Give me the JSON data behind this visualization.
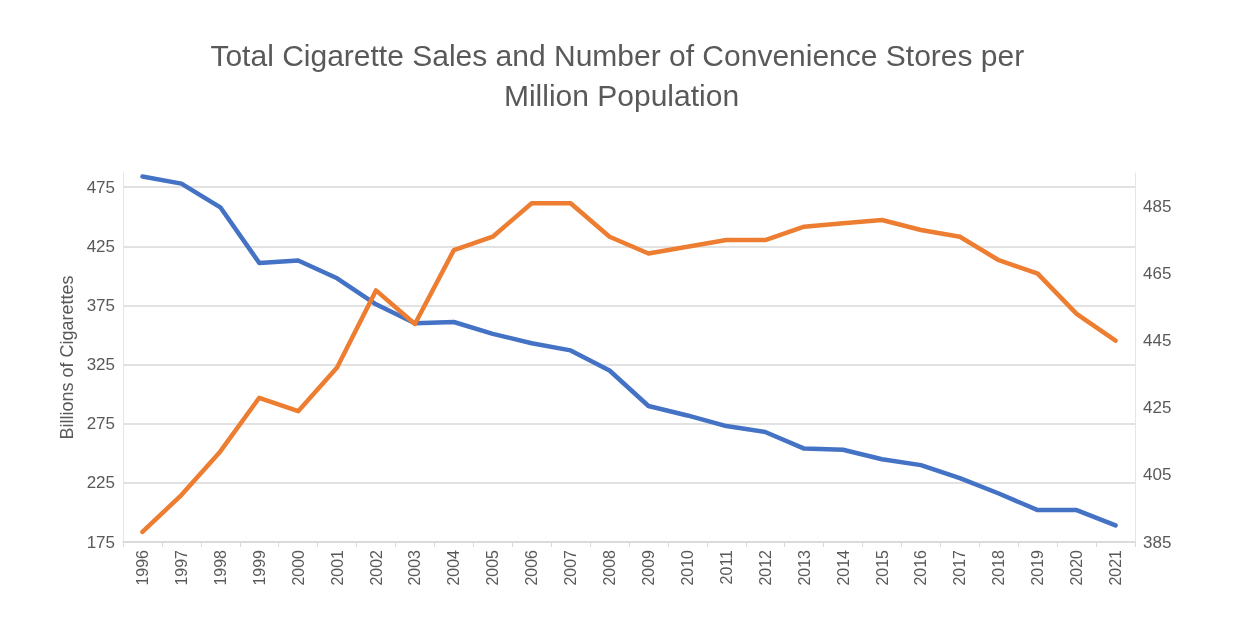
{
  "chart_data": {
    "type": "line",
    "title": "Total Cigarette Sales and Number of Convenience Stores per Million Population",
    "ylabel": "Billions of Cigarettes",
    "categories": [
      "1996",
      "1997",
      "1998",
      "1999",
      "2000",
      "2001",
      "2002",
      "2003",
      "2004",
      "2005",
      "2006",
      "2007",
      "2008",
      "2009",
      "2010",
      "2011",
      "2012",
      "2013",
      "2014",
      "2015",
      "2016",
      "2017",
      "2018",
      "2019",
      "2020",
      "2021"
    ],
    "series": [
      {
        "color": "#4472c4",
        "values": [
          484,
          478,
          458,
          411,
          413,
          398,
          376,
          360,
          361,
          351,
          343,
          337,
          320,
          290,
          282,
          273,
          268,
          254,
          253,
          245,
          240,
          229,
          216,
          202,
          202,
          189
        ]
      },
      {
        "color": "#ed7d31",
        "axis": "y2",
        "values": [
          388,
          399,
          412,
          428,
          424,
          437,
          460,
          450,
          472,
          476,
          486,
          486,
          476,
          471,
          473,
          475,
          475,
          479,
          480,
          481,
          478,
          476,
          469,
          465,
          453,
          445
        ]
      }
    ],
    "ylim": [
      175,
      487
    ],
    "yticks": [
      175,
      225,
      275,
      325,
      375,
      425,
      475
    ],
    "y2lim": [
      385,
      495
    ],
    "y2ticks": [
      385,
      405,
      425,
      445,
      465,
      485
    ],
    "grid": "y",
    "marker": "none",
    "line_style": "solid"
  }
}
